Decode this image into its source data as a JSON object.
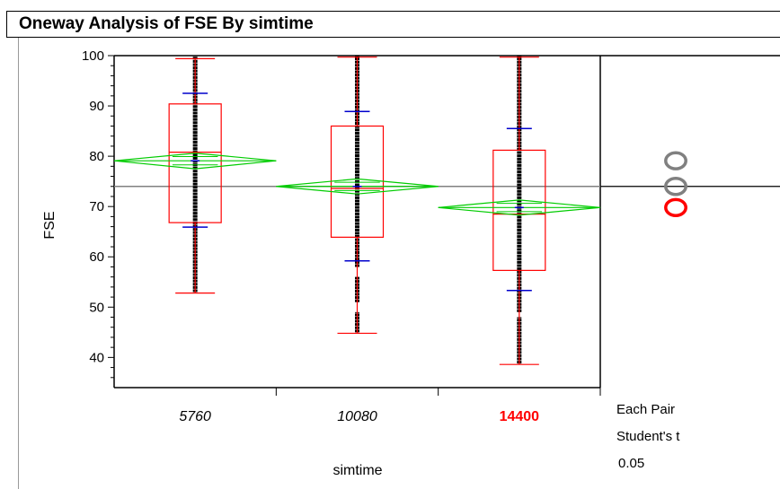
{
  "report": {
    "title": "Oneway Analysis of FSE By simtime"
  },
  "chart_data": {
    "type": "oneway",
    "title": "Oneway Analysis of FSE By simtime",
    "xlabel": "simtime",
    "ylabel": "FSE",
    "categories": [
      "5760",
      "10080",
      "14400"
    ],
    "highlighted_category": "14400",
    "ylim": [
      34,
      100
    ],
    "yticks": [
      40,
      50,
      60,
      70,
      80,
      90,
      100
    ],
    "grand_mean": 74.0,
    "boxes": [
      {
        "category": "5760",
        "min": 52.8,
        "q1": 66.8,
        "median": 80.8,
        "q3": 90.4,
        "max": 99.4
      },
      {
        "category": "10080",
        "min": 44.8,
        "q1": 63.9,
        "median": 73.6,
        "q3": 86.0,
        "max": 99.7
      },
      {
        "category": "14400",
        "min": 38.6,
        "q1": 57.3,
        "median": 68.5,
        "q3": 81.2,
        "max": 99.7
      }
    ],
    "means": [
      {
        "category": "5760",
        "mean": 79.1,
        "ci_low": 77.5,
        "ci_high": 80.6,
        "sd_low": 65.9,
        "sd_high": 92.5
      },
      {
        "category": "10080",
        "mean": 74.0,
        "ci_low": 72.5,
        "ci_high": 75.5,
        "sd_low": 59.2,
        "sd_high": 88.9
      },
      {
        "category": "14400",
        "mean": 69.8,
        "ci_low": 68.3,
        "ci_high": 71.3,
        "sd_low": 53.3,
        "sd_high": 85.5
      }
    ],
    "points": [
      {
        "category": "5760",
        "ranges": [
          [
            53,
            100
          ]
        ]
      },
      {
        "category": "10080",
        "ranges": [
          [
            45,
            49
          ],
          [
            51,
            56
          ],
          [
            58,
            100
          ]
        ]
      },
      {
        "category": "14400",
        "ranges": [
          [
            38.8,
            48
          ],
          [
            49,
            100
          ]
        ]
      }
    ],
    "comparison": {
      "label_lines": [
        "Each Pair",
        "Student's t",
        "0.05"
      ],
      "circles": [
        {
          "center": 79.1,
          "radius": 1.6,
          "color": "#808080"
        },
        {
          "center": 74.0,
          "radius": 1.6,
          "color": "#808080"
        },
        {
          "center": 69.8,
          "radius": 1.6,
          "color": "#ff0000"
        }
      ]
    }
  }
}
